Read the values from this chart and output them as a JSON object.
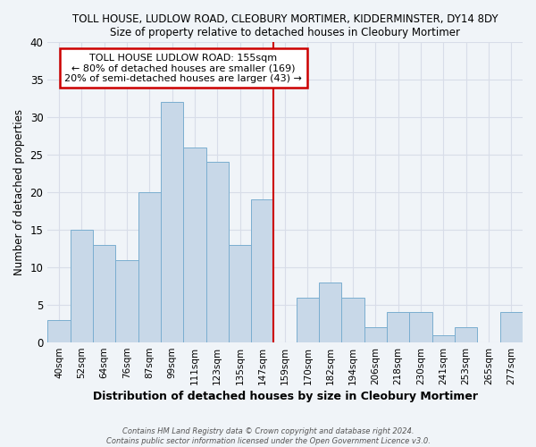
{
  "title": "TOLL HOUSE, LUDLOW ROAD, CLEOBURY MORTIMER, KIDDERMINSTER, DY14 8DY",
  "subtitle": "Size of property relative to detached houses in Cleobury Mortimer",
  "xlabel": "Distribution of detached houses by size in Cleobury Mortimer",
  "ylabel": "Number of detached properties",
  "bar_labels": [
    "40sqm",
    "52sqm",
    "64sqm",
    "76sqm",
    "87sqm",
    "99sqm",
    "111sqm",
    "123sqm",
    "135sqm",
    "147sqm",
    "159sqm",
    "170sqm",
    "182sqm",
    "194sqm",
    "206sqm",
    "218sqm",
    "230sqm",
    "241sqm",
    "253sqm",
    "265sqm",
    "277sqm"
  ],
  "bar_heights": [
    3,
    15,
    13,
    11,
    20,
    32,
    26,
    24,
    13,
    19,
    0,
    6,
    8,
    6,
    2,
    4,
    4,
    1,
    2,
    0,
    4
  ],
  "bar_color": "#c8d8e8",
  "bar_edge_color": "#7aaed0",
  "vline_color": "#cc0000",
  "annotation_title": "TOLL HOUSE LUDLOW ROAD: 155sqm",
  "annotation_line1": "← 80% of detached houses are smaller (169)",
  "annotation_line2": "20% of semi-detached houses are larger (43) →",
  "annotation_box_color": "#cc0000",
  "ylim": [
    0,
    40
  ],
  "yticks": [
    0,
    5,
    10,
    15,
    20,
    25,
    30,
    35,
    40
  ],
  "footer1": "Contains HM Land Registry data © Crown copyright and database right 2024.",
  "footer2": "Contains public sector information licensed under the Open Government Licence v3.0.",
  "bg_color": "#f0f4f8",
  "plot_bg_color": "#f0f4f8",
  "grid_color": "#d8dde8"
}
